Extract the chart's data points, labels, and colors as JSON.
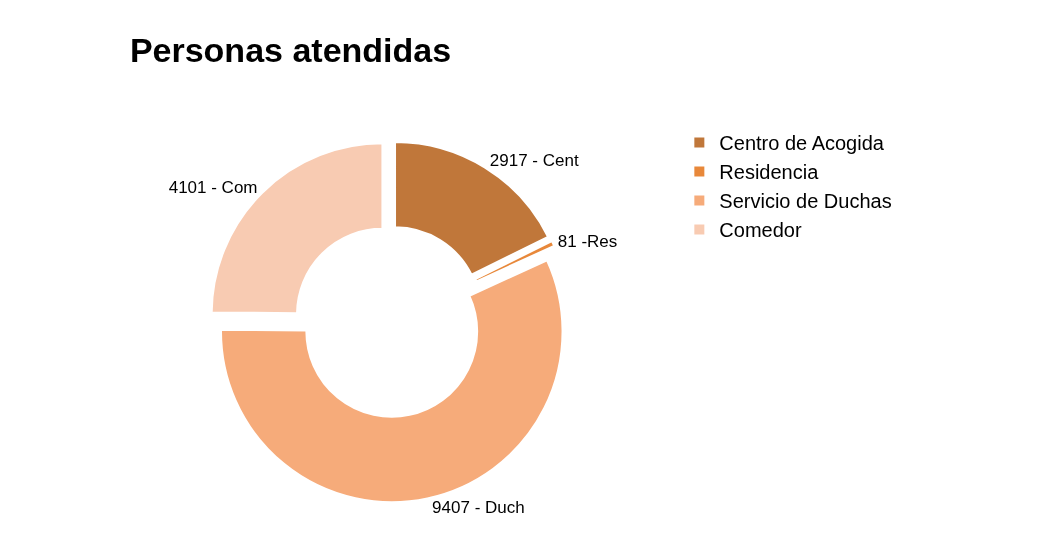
{
  "chart_data": {
    "type": "donut",
    "title": "Personas atendidas",
    "categories": [
      "Centro de Acogida",
      "Residencia",
      "Servicio de Duchas",
      "Comedor"
    ],
    "values": [
      2917,
      81,
      9407,
      4101
    ],
    "value_labels": [
      "2917 - Cent",
      "81 -Res",
      "9407 - Duch",
      "4101 - Com"
    ],
    "colors": [
      "#c0773a",
      "#e8883a",
      "#f6ab7a",
      "#f8cbb2"
    ],
    "legend": "top right"
  }
}
